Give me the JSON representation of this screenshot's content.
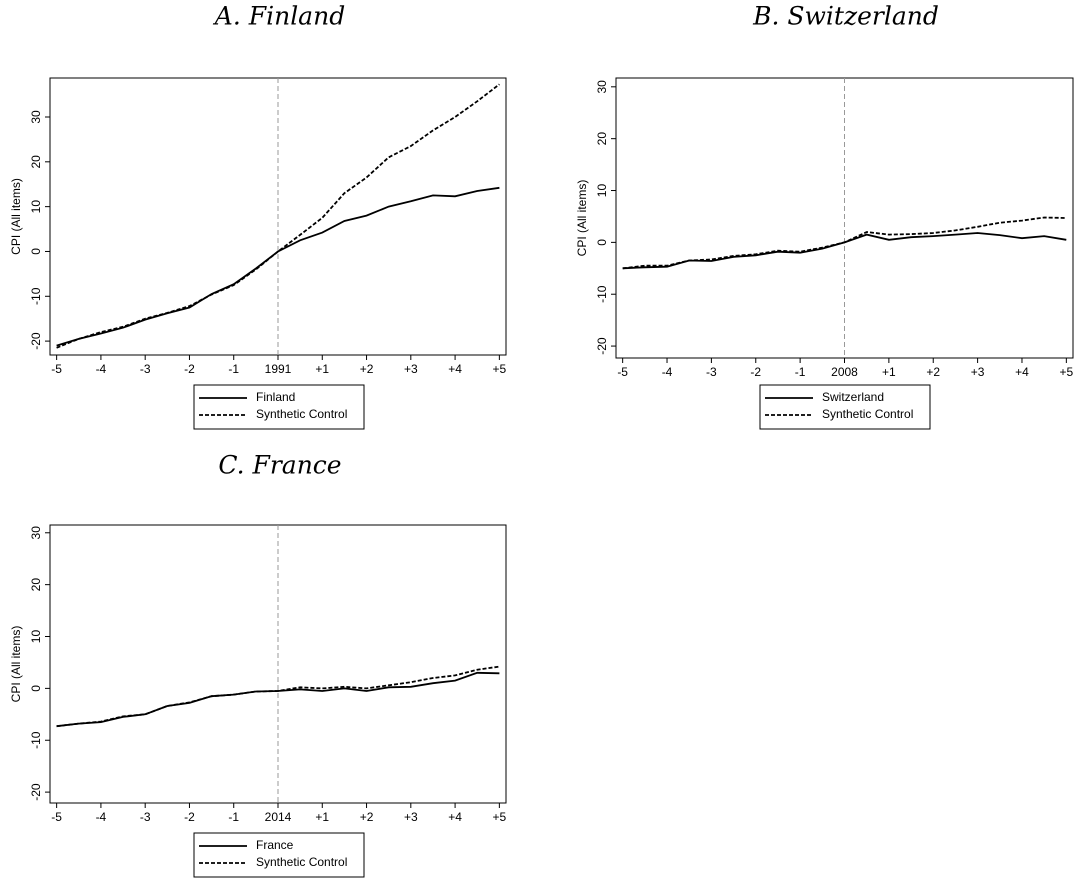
{
  "chart_data": [
    {
      "type": "line",
      "title": "A. Finland",
      "y_label": "CPI (All items)",
      "vline": 0,
      "x": [
        -5,
        -4.5,
        -4,
        -3.5,
        -3,
        -2.5,
        -2,
        -1.5,
        -1,
        -0.5,
        0,
        0.5,
        1,
        1.5,
        2,
        2.5,
        3,
        3.5,
        4,
        4.5,
        5
      ],
      "xlim": [
        -5.15,
        5.15
      ],
      "xticks": [
        -5,
        -4,
        -3,
        -2,
        -1,
        {
          "value": 0,
          "label": "1991"
        },
        {
          "value": 1,
          "label": "+1"
        },
        {
          "value": 2,
          "label": "+2"
        },
        {
          "value": 3,
          "label": "+3"
        },
        {
          "value": 4,
          "label": "+4"
        },
        {
          "value": 5,
          "label": "+5"
        }
      ],
      "ylim": [
        -23.1,
        38.7
      ],
      "yticks": [
        -20,
        -10,
        0,
        10,
        20,
        30
      ],
      "series": [
        {
          "name": "Finland",
          "color": "#000000",
          "dash": false,
          "values": [
            -21,
            -19.5,
            -18.3,
            -17,
            -15.2,
            -13.8,
            -12.5,
            -9.5,
            -7.3,
            -3.8,
            0,
            2.5,
            4.2,
            6.8,
            8,
            10,
            11.2,
            12.5,
            12.3,
            13.5,
            14.2
          ]
        },
        {
          "name": "Synthetic Control",
          "color": "#000000",
          "dash": true,
          "values": [
            -21.5,
            -19.5,
            -18,
            -16.8,
            -15,
            -13.7,
            -12.2,
            -9.6,
            -7.5,
            -4,
            0,
            3.7,
            7.5,
            13,
            16.5,
            21,
            23.5,
            27,
            30,
            33.5,
            37.3
          ]
        }
      ]
    },
    {
      "type": "line",
      "title": "B. Switzerland",
      "y_label": "CPI (All items)",
      "vline": 0,
      "x": [
        -5,
        -4.5,
        -4,
        -3.5,
        -3,
        -2.5,
        -2,
        -1.5,
        -1,
        -0.5,
        0,
        0.5,
        1,
        1.5,
        2,
        2.5,
        3,
        3.5,
        4,
        4.5,
        5
      ],
      "xlim": [
        -5.15,
        5.15
      ],
      "xticks": [
        -5,
        -4,
        -3,
        -2,
        -1,
        {
          "value": 0,
          "label": "2008"
        },
        {
          "value": 1,
          "label": "+1"
        },
        {
          "value": 2,
          "label": "+2"
        },
        {
          "value": 3,
          "label": "+3"
        },
        {
          "value": 4,
          "label": "+4"
        },
        {
          "value": 5,
          "label": "+5"
        }
      ],
      "ylim": [
        -22.3,
        31.7
      ],
      "yticks": [
        -20,
        -10,
        0,
        10,
        20,
        30
      ],
      "series": [
        {
          "name": "Switzerland",
          "color": "#000000",
          "dash": false,
          "values": [
            -5,
            -4.8,
            -4.7,
            -3.5,
            -3.6,
            -2.8,
            -2.5,
            -1.8,
            -2,
            -1.2,
            0,
            1.5,
            0.5,
            1,
            1.2,
            1.5,
            1.8,
            1.4,
            0.8,
            1.2,
            0.5
          ]
        },
        {
          "name": "Synthetic Control",
          "color": "#000000",
          "dash": true,
          "values": [
            -5,
            -4.5,
            -4.5,
            -3.5,
            -3.3,
            -2.6,
            -2.3,
            -1.6,
            -1.8,
            -1,
            0,
            2,
            1.5,
            1.6,
            1.8,
            2.3,
            3,
            3.8,
            4.2,
            4.8,
            4.7
          ]
        }
      ]
    },
    {
      "type": "line",
      "title": "C. France",
      "y_label": "CPI (All items)",
      "vline": 0,
      "x": [
        -5,
        -4.5,
        -4,
        -3.5,
        -3,
        -2.5,
        -2,
        -1.5,
        -1,
        -0.5,
        0,
        0.5,
        1,
        1.5,
        2,
        2.5,
        3,
        3.5,
        4,
        4.5,
        5
      ],
      "xlim": [
        -5.15,
        5.15
      ],
      "xticks": [
        -5,
        -4,
        -3,
        -2,
        -1,
        {
          "value": 0,
          "label": "2014"
        },
        {
          "value": 1,
          "label": "+1"
        },
        {
          "value": 2,
          "label": "+2"
        },
        {
          "value": 3,
          "label": "+3"
        },
        {
          "value": 4,
          "label": "+4"
        },
        {
          "value": 5,
          "label": "+5"
        }
      ],
      "ylim": [
        -22.1,
        31.5
      ],
      "yticks": [
        -20,
        -10,
        0,
        10,
        20,
        30
      ],
      "series": [
        {
          "name": "France",
          "color": "#000000",
          "dash": false,
          "values": [
            -7.3,
            -6.8,
            -6.5,
            -5.5,
            -5,
            -3.4,
            -2.8,
            -1.5,
            -1.2,
            -0.6,
            -0.5,
            -0.2,
            -0.5,
            0,
            -0.5,
            0.2,
            0.3,
            1,
            1.5,
            3,
            2.9
          ]
        },
        {
          "name": "Synthetic Control",
          "color": "#000000",
          "dash": true,
          "values": [
            -7.3,
            -6.8,
            -6.4,
            -5.4,
            -5,
            -3.4,
            -2.7,
            -1.5,
            -1.2,
            -0.6,
            -0.5,
            0.2,
            0,
            0.3,
            0,
            0.6,
            1.2,
            2,
            2.5,
            3.6,
            4.2
          ]
        }
      ]
    }
  ]
}
